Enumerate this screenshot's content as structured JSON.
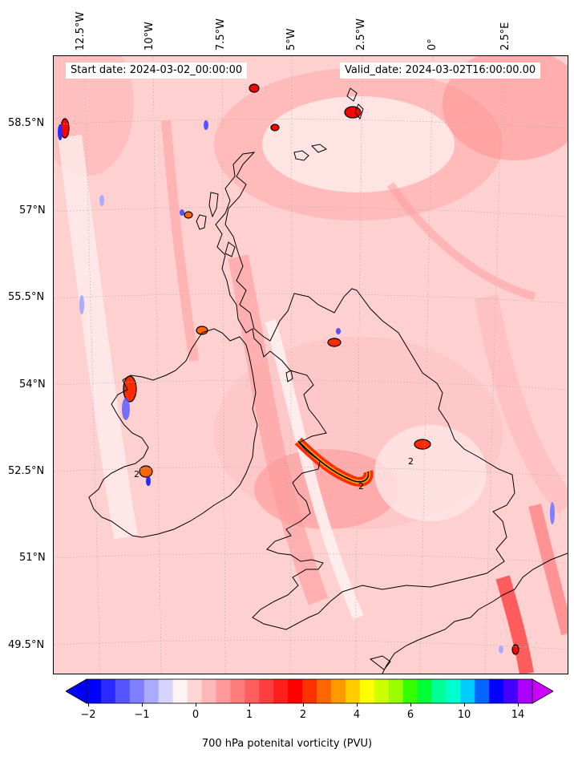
{
  "start_date": "Start date: 2024-03-02_00:00:00",
  "valid_date": "Valid_date: 2024-03-02T16:00:00.00",
  "lon_labels": [
    "12.5°W",
    "10°W",
    "7.5°W",
    "5°W",
    "2.5°W",
    "0°",
    "2.5°E"
  ],
  "lat_labels": [
    "58.5°N",
    "57°N",
    "55.5°N",
    "54°N",
    "52.5°N",
    "51°N",
    "49.5°N"
  ],
  "contour_labels": [
    "2",
    "2",
    "2"
  ],
  "colorbar": {
    "label": "700 hPa potenital vorticity (PVU)",
    "ticks": [
      "−2",
      "−1",
      "0",
      "1",
      "2",
      "4",
      "6",
      "10",
      "14"
    ],
    "colors": [
      "#0000ff",
      "#2a2aff",
      "#5555ff",
      "#7f7fff",
      "#aaaaff",
      "#d5d5ff",
      "#fff3f3",
      "#ffd6d6",
      "#ffb8b8",
      "#ff9a9a",
      "#ff7c7c",
      "#ff5e5e",
      "#ff3f3f",
      "#ff1e1e",
      "#ff0000",
      "#ff3300",
      "#ff6600",
      "#ff9900",
      "#ffcc00",
      "#ffff00",
      "#ccff00",
      "#99ff00",
      "#33ff00",
      "#00ff33",
      "#00ff99",
      "#00ffcc",
      "#00ccff",
      "#0066ff",
      "#0000ff",
      "#4400ff",
      "#aa00ff"
    ],
    "extend_low": "#0000ff",
    "extend_high": "#cc00ff"
  },
  "map": {
    "region": "British Isles",
    "background_pv": "0.5",
    "coastline_color": "#000000",
    "gridline_color": "#b0b0b0"
  }
}
